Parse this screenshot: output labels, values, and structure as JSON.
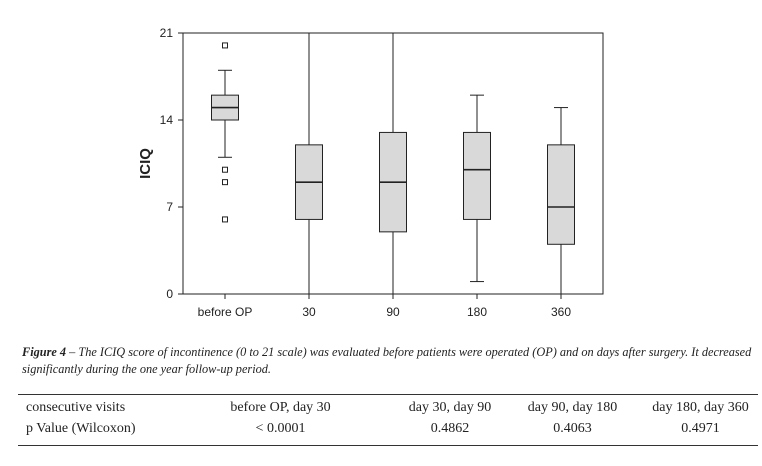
{
  "chart_data": {
    "type": "box",
    "ylabel": "ICIQ",
    "xlabel": "",
    "ylim": [
      0,
      21
    ],
    "yticks": [
      0,
      7,
      14,
      21
    ],
    "grid": false,
    "categories": [
      "before OP",
      "30",
      "90",
      "180",
      "360"
    ],
    "boxes": [
      {
        "category": "before OP",
        "q1": 14,
        "median": 15,
        "q3": 16,
        "whisker_low": 11,
        "whisker_high": 18,
        "outliers": [
          20,
          10,
          9,
          6
        ]
      },
      {
        "category": "30",
        "q1": 6,
        "median": 9,
        "q3": 12,
        "whisker_low": 0,
        "whisker_high": 21,
        "outliers": []
      },
      {
        "category": "90",
        "q1": 5,
        "median": 9,
        "q3": 13,
        "whisker_low": 0,
        "whisker_high": 21,
        "outliers": []
      },
      {
        "category": "180",
        "q1": 6,
        "median": 10,
        "q3": 13,
        "whisker_low": 1,
        "whisker_high": 16,
        "outliers": []
      },
      {
        "category": "360",
        "q1": 4,
        "median": 7,
        "q3": 12,
        "whisker_low": 0,
        "whisker_high": 15,
        "outliers": []
      }
    ]
  },
  "caption": {
    "label": "Figure 4",
    "text": " – The ICIQ score of incontinence (0 to 21 scale) was evaluated before patients were operated (OP) and on days after surgery. It decreased significantly during the one year follow-up period."
  },
  "stats_table": {
    "header": [
      "consecutive visits",
      "before OP, day 30",
      "day 30, day 90",
      "day 90, day 180",
      "day 180, day 360"
    ],
    "row": [
      "p Value (Wilcoxon)",
      "< 0.0001",
      "0.4862",
      "0.4063",
      "0.4971"
    ]
  },
  "colors": {
    "box_fill": "#d9d9d9",
    "box_line": "#222222",
    "axis": "#222222"
  }
}
